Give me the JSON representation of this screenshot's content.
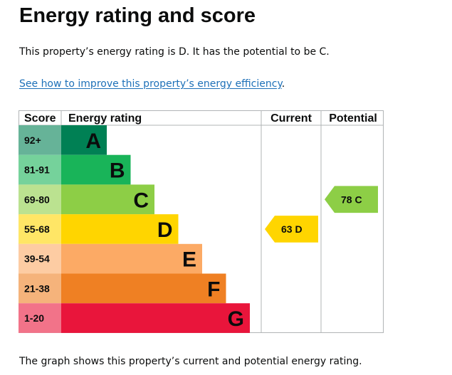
{
  "title": "Energy rating and score",
  "intro": "This property’s energy rating is D. It has the potential to be C.",
  "link": {
    "text": "See how to improve this property’s energy efficiency",
    "suffix": "."
  },
  "footer": "The graph shows this property’s current and potential energy rating.",
  "chart_data": {
    "type": "table",
    "headers": {
      "score": "Score",
      "rating": "Energy rating",
      "current": "Current",
      "potential": "Potential"
    },
    "bands": [
      {
        "score": "92+",
        "letter": "A",
        "color": "#008054",
        "score_bg": "#66b398"
      },
      {
        "score": "81-91",
        "letter": "B",
        "color": "#19b459",
        "score_bg": "#75d29b"
      },
      {
        "score": "69-80",
        "letter": "C",
        "color": "#8dce46",
        "score_bg": "#bbe290"
      },
      {
        "score": "55-68",
        "letter": "D",
        "color": "#ffd500",
        "score_bg": "#ffe666"
      },
      {
        "score": "39-54",
        "letter": "E",
        "color": "#fcaa65",
        "score_bg": "#fdcca3"
      },
      {
        "score": "21-38",
        "letter": "F",
        "color": "#ef8023",
        "score_bg": "#f5b37b"
      },
      {
        "score": "1-20",
        "letter": "G",
        "color": "#e9153b",
        "score_bg": "#f27389"
      }
    ],
    "current": {
      "score": 63,
      "letter": "D",
      "label": "63 D",
      "color": "#ffd500"
    },
    "potential": {
      "score": 78,
      "letter": "C",
      "label": "78 C",
      "color": "#8dce46"
    }
  }
}
